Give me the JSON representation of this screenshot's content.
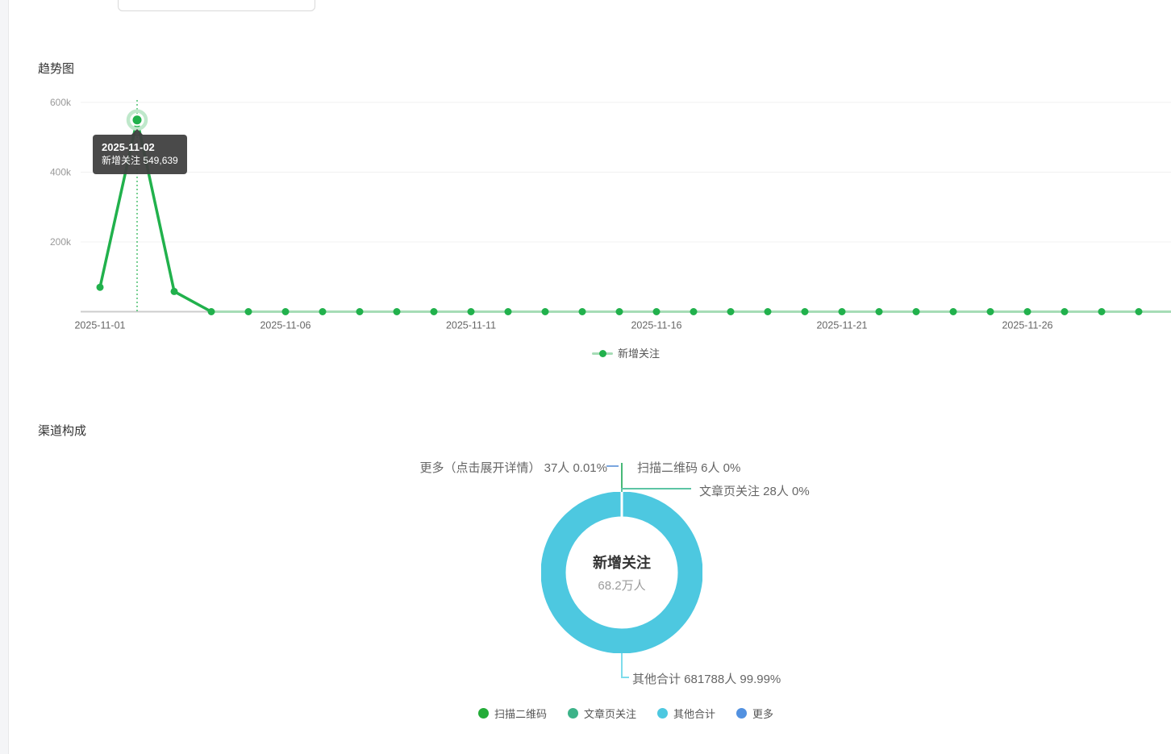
{
  "header": {
    "trend_title": "趋势图",
    "channel_title": "渠道构成"
  },
  "tooltip": {
    "date": "2025-11-02",
    "line2": "新增关注 549,639"
  },
  "chart_data": [
    {
      "type": "line",
      "title": "趋势图",
      "x": [
        "2025-11-01",
        "2025-11-02",
        "2025-11-03",
        "2025-11-04",
        "2025-11-05",
        "2025-11-06",
        "2025-11-07",
        "2025-11-08",
        "2025-11-09",
        "2025-11-10",
        "2025-11-11",
        "2025-11-12",
        "2025-11-13",
        "2025-11-14",
        "2025-11-15",
        "2025-11-16",
        "2025-11-17",
        "2025-11-18",
        "2025-11-19",
        "2025-11-20",
        "2025-11-21",
        "2025-11-22",
        "2025-11-23",
        "2025-11-24",
        "2025-11-25",
        "2025-11-26",
        "2025-11-27",
        "2025-11-28",
        "2025-11-29"
      ],
      "series": [
        {
          "name": "新增关注",
          "values": [
            70000,
            549639,
            58000,
            0,
            0,
            0,
            0,
            0,
            0,
            0,
            0,
            0,
            0,
            0,
            0,
            0,
            0,
            0,
            0,
            0,
            0,
            0,
            0,
            0,
            0,
            0,
            0,
            0,
            0
          ]
        }
      ],
      "x_tick_labels": [
        "2025-11-01",
        "2025-11-06",
        "2025-11-11",
        "2025-11-16",
        "2025-11-21",
        "2025-11-26"
      ],
      "y_ticks": [
        {
          "label": "200k",
          "value": 200000
        },
        {
          "label": "400k",
          "value": 400000
        },
        {
          "label": "600k",
          "value": 600000
        }
      ],
      "ylim": [
        0,
        600000
      ],
      "grid": true,
      "legend_position": "bottom",
      "line_color": "#21b14c",
      "line_color_light": "#a6dcb6",
      "highlight": {
        "index": 1,
        "date": "2025-11-02",
        "value": 549639
      }
    },
    {
      "type": "pie",
      "center": {
        "title": "新增关注",
        "subtitle": "68.2万人"
      },
      "ring_color": "#4dc8e0",
      "slices": [
        {
          "label": "扫描二维码",
          "people": 6,
          "pct": "0%",
          "color": "#23ac38"
        },
        {
          "label": "文章页关注",
          "people": 28,
          "pct": "0%",
          "color": "#3db389"
        },
        {
          "label": "其他合计",
          "people": 681788,
          "pct": "99.99%",
          "color": "#4dc8e0"
        },
        {
          "label": "更多",
          "people": 37,
          "pct": "0.01%",
          "color": "#5291e0"
        }
      ],
      "callouts": {
        "more": "更多（点击展开详情） 37人 0.01%",
        "qr": "扫描二维码 6人 0%",
        "article": "文章页关注 28人 0%",
        "others": "其他合计 681788人 99.99%"
      },
      "legend": [
        {
          "label": "扫描二维码",
          "color": "#23ac38"
        },
        {
          "label": "文章页关注",
          "color": "#3db389"
        },
        {
          "label": "其他合计",
          "color": "#4dc8e0"
        },
        {
          "label": "更多",
          "color": "#5291e0"
        }
      ]
    }
  ]
}
